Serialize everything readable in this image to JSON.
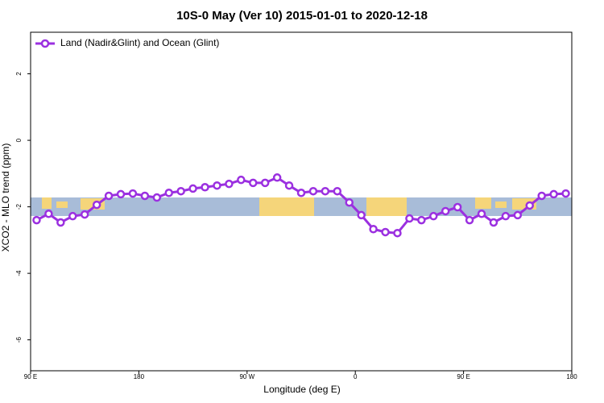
{
  "chart_data": {
    "type": "line",
    "title": "10S-0 May (Ver 10)   2015-01-01 to 2020-12-18",
    "xlabel": "Longitude (deg E)",
    "ylabel": "XCO2 - MLO trend (ppm)",
    "x": [
      95,
      105,
      115,
      125,
      135,
      145,
      155,
      165,
      175,
      185,
      195,
      205,
      215,
      225,
      235,
      245,
      255,
      265,
      275,
      285,
      295,
      305,
      315,
      325,
      335,
      345,
      355,
      365,
      375,
      385,
      395,
      405,
      415,
      425,
      435,
      445,
      455,
      465,
      475,
      485,
      495,
      505,
      515,
      525,
      535
    ],
    "series": [
      {
        "name": "Land (Nadir&Glint) and Ocean (Glint)",
        "color": "#9b30e0",
        "values": [
          -2.4,
          -2.21,
          -2.47,
          -2.28,
          -2.23,
          -1.94,
          -1.67,
          -1.62,
          -1.6,
          -1.67,
          -1.72,
          -1.58,
          -1.53,
          -1.45,
          -1.41,
          -1.36,
          -1.31,
          -1.19,
          -1.28,
          -1.28,
          -1.12,
          -1.36,
          -1.58,
          -1.53,
          -1.53,
          -1.53,
          -1.87,
          -2.25,
          -2.67,
          -2.76,
          -2.79,
          -2.35,
          -2.4,
          -2.28,
          -2.13,
          -2.01,
          -2.4,
          -2.21,
          -2.47,
          -2.28,
          -2.25,
          -1.96,
          -1.67,
          -1.62,
          -1.6
        ]
      }
    ],
    "xlim": [
      90,
      540
    ],
    "xticks": [
      {
        "value": 90,
        "label": "90 E"
      },
      180,
      {
        "value": 270,
        "label": "90 W"
      },
      {
        "value": 360,
        "label": "0"
      },
      {
        "value": 450,
        "label": "90 E"
      },
      {
        "value": 540,
        "label": "180"
      }
    ],
    "ylim": [
      -6.93,
      3.25
    ],
    "yticks": [
      -6,
      -4,
      -2,
      0,
      2
    ],
    "legend": "upper left"
  }
}
